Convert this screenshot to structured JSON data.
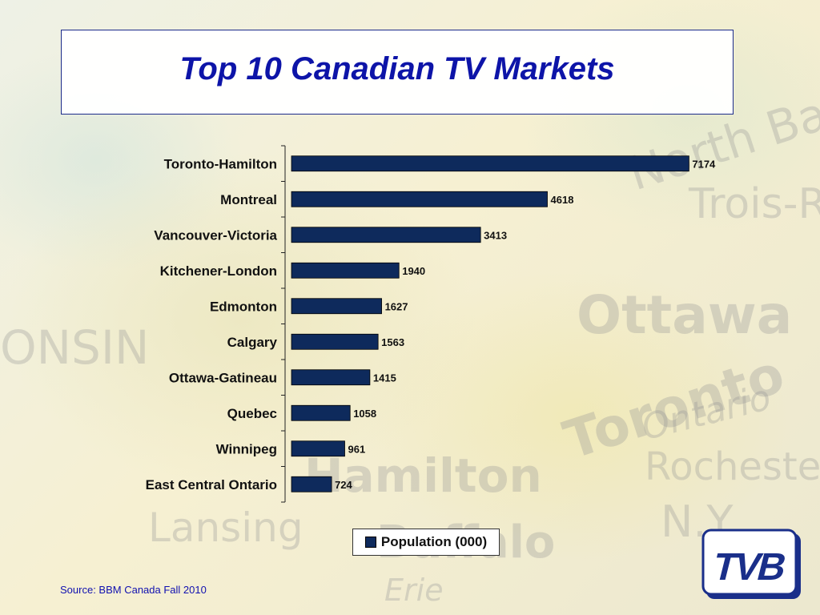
{
  "slide": {
    "title": "Top 10 Canadian TV Markets",
    "source": "Source: BBM Canada Fall 2010",
    "logo_text": "TVB"
  },
  "background_words": [
    "North Bay",
    "Trois-R",
    "Ottawa",
    "Toronto",
    "Hamilton",
    "Rochester",
    "N.Y.",
    "Lansing",
    "Buffalo",
    "ONSIN",
    "Erie",
    "Ontario"
  ],
  "colors": {
    "bar": "#0e2a5c",
    "title": "#0d14a8",
    "source": "#1010b0"
  },
  "chart_data": {
    "type": "bar",
    "orientation": "horizontal",
    "categories": [
      "Toronto-Hamilton",
      "Montreal",
      "Vancouver-Victoria",
      "Kitchener-London",
      "Edmonton",
      "Calgary",
      "Ottawa-Gatineau",
      "Quebec",
      "Winnipeg",
      "East Central Ontario"
    ],
    "series": [
      {
        "name": "Population (000)",
        "values": [
          7174,
          4618,
          3413,
          1940,
          1627,
          1563,
          1415,
          1058,
          961,
          724
        ]
      }
    ],
    "xlim": [
      0,
      7400
    ],
    "grid": false,
    "legend": "bottom",
    "data_labels": true
  }
}
